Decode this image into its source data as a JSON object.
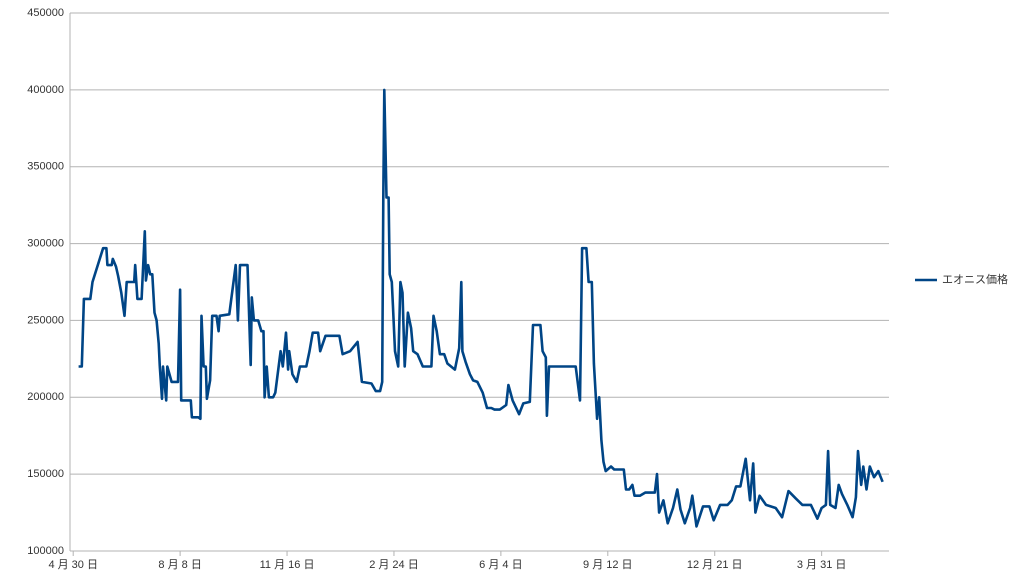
{
  "chart_data": {
    "type": "line",
    "x": [
      5,
      8,
      10,
      16,
      18,
      28,
      31,
      32,
      36,
      37,
      40,
      42,
      45,
      48,
      50,
      57,
      58,
      60,
      64,
      67,
      68,
      70,
      72,
      74,
      76,
      78,
      80,
      81,
      83,
      84,
      87,
      88,
      92,
      98,
      100,
      101,
      110,
      111,
      117,
      119,
      120,
      122,
      124,
      125,
      127,
      128,
      130,
      134,
      136,
      137,
      146,
      152,
      154,
      156,
      163,
      166,
      167,
      169,
      173,
      176,
      178,
      179,
      181,
      183,
      187,
      189,
      194,
      196,
      199,
      201,
      202,
      205,
      209,
      212,
      218,
      221,
      224,
      229,
      231,
      236,
      249,
      252,
      259,
      266,
      270,
      279,
      283,
      287,
      289,
      290,
      291,
      293,
      295,
      296,
      298,
      299,
      301,
      304,
      306,
      308,
      310,
      313,
      316,
      318,
      322,
      327,
      335,
      337,
      340,
      343,
      347,
      350,
      357,
      361,
      363,
      364,
      367,
      371,
      374,
      378,
      383,
      387,
      391,
      394,
      399,
      405,
      407,
      411,
      417,
      421,
      427,
      430,
      437,
      439,
      442,
      443,
      445,
      467,
      470,
      474,
      476,
      480,
      482,
      485,
      487,
      490,
      492,
      494,
      496,
      498,
      503,
      506,
      515,
      517,
      520,
      523,
      525,
      530,
      535,
      544,
      546,
      548,
      552,
      556,
      561,
      565,
      568,
      572,
      577,
      579,
      583,
      589,
      595,
      599,
      605,
      612,
      616,
      620,
      624,
      629,
      633,
      636,
      638,
      642,
      648,
      657,
      663,
      669,
      676,
      682,
      690,
      696,
      700,
      704,
      706,
      708,
      713,
      716,
      719,
      724,
      729,
      732,
      734,
      737,
      739,
      742,
      745,
      749,
      753,
      757
    ],
    "series": [
      {
        "name": "エオニス価格",
        "color": "#004586",
        "values": [
          220000,
          220000,
          264000,
          264000,
          275000,
          297000,
          297000,
          286000,
          286000,
          290000,
          285000,
          279000,
          268000,
          253000,
          275000,
          275000,
          286000,
          264000,
          264000,
          308000,
          276000,
          286000,
          280000,
          280000,
          255000,
          250000,
          235000,
          220000,
          199000,
          220000,
          198000,
          220000,
          210000,
          210000,
          270000,
          198000,
          198000,
          187000,
          187000,
          186000,
          253000,
          220000,
          220000,
          199000,
          207000,
          211000,
          253000,
          253000,
          243000,
          253000,
          254000,
          286000,
          250000,
          286000,
          286000,
          221000,
          265000,
          250000,
          250000,
          243000,
          243000,
          200000,
          220000,
          200000,
          200000,
          203000,
          230000,
          220000,
          242000,
          218000,
          230000,
          215000,
          210000,
          220000,
          220000,
          230000,
          242000,
          242000,
          230000,
          240000,
          240000,
          228000,
          230000,
          236000,
          210000,
          209000,
          204000,
          204000,
          210000,
          330000,
          400000,
          330000,
          330000,
          280000,
          275000,
          260000,
          230000,
          220000,
          275000,
          268000,
          220000,
          255000,
          245000,
          230000,
          228000,
          220000,
          220000,
          253000,
          243000,
          228000,
          228000,
          222000,
          218000,
          232000,
          275000,
          230000,
          223000,
          215000,
          211000,
          210000,
          203000,
          193000,
          193000,
          192000,
          192000,
          195000,
          208000,
          198000,
          189000,
          196000,
          197000,
          247000,
          247000,
          230000,
          226000,
          188000,
          220000,
          220000,
          220000,
          198000,
          297000,
          297000,
          275000,
          275000,
          222000,
          186000,
          200000,
          172000,
          158000,
          152000,
          155000,
          153000,
          153000,
          140000,
          140000,
          143000,
          136000,
          136000,
          138000,
          138000,
          150000,
          125000,
          133000,
          118000,
          128000,
          140000,
          127000,
          118000,
          128000,
          136000,
          116000,
          129000,
          129000,
          120000,
          130000,
          130000,
          133000,
          142000,
          142000,
          160000,
          133000,
          157000,
          125000,
          136000,
          130000,
          128000,
          122000,
          139000,
          134000,
          130000,
          130000,
          121000,
          128000,
          130000,
          165000,
          130000,
          128000,
          143000,
          137000,
          130000,
          122000,
          135000,
          165000,
          143000,
          155000,
          140000,
          155000,
          148000,
          152000,
          145000
        ]
      }
    ],
    "xlim": [
      -3,
      763
    ],
    "xticks": [
      {
        "value": 0,
        "label": "4 月 30 日"
      },
      {
        "value": 100,
        "label": "8 月 8 日"
      },
      {
        "value": 200,
        "label": "11 月 16 日"
      },
      {
        "value": 300,
        "label": "2 月 24 日"
      },
      {
        "value": 400,
        "label": "6 月 4 日"
      },
      {
        "value": 500,
        "label": "9 月 12 日"
      },
      {
        "value": 600,
        "label": "12 月 21 日"
      },
      {
        "value": 700,
        "label": "3 月 31 日"
      }
    ],
    "ylim": [
      100000,
      450000
    ],
    "yticks": [
      100000,
      150000,
      200000,
      250000,
      300000,
      350000,
      400000,
      450000
    ],
    "grid": true,
    "legend": "right"
  }
}
